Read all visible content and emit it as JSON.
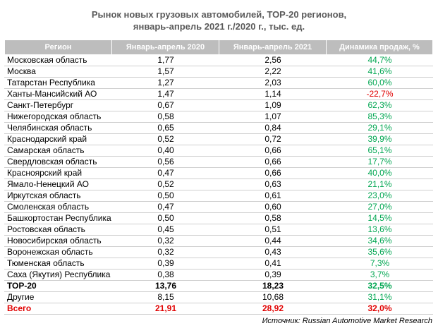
{
  "title_line1": "Рынок новых грузовых автомобилей, ТОР-20 регионов,",
  "title_line2": "январь-апрель 2021 г./2020 г., тыс. ед.",
  "headers": [
    "Регион",
    "Январь-апрель 2020",
    "Январь-апрель 2021",
    "Динамика продаж, %"
  ],
  "rows": [
    {
      "region": "Московская область",
      "y2020": "1,77",
      "y2021": "2,56",
      "change": "44,7%"
    },
    {
      "region": "Москва",
      "y2020": "1,57",
      "y2021": "2,22",
      "change": "41,6%"
    },
    {
      "region": "Татарстан Республика",
      "y2020": "1,27",
      "y2021": "2,03",
      "change": "60,0%"
    },
    {
      "region": "Ханты-Мансийский АО",
      "y2020": "1,47",
      "y2021": "1,14",
      "change": "-22,7%"
    },
    {
      "region": "Санкт-Петербург",
      "y2020": "0,67",
      "y2021": "1,09",
      "change": "62,3%"
    },
    {
      "region": "Нижегородская область",
      "y2020": "0,58",
      "y2021": "1,07",
      "change": "85,3%"
    },
    {
      "region": "Челябинская область",
      "y2020": "0,65",
      "y2021": "0,84",
      "change": "29,1%"
    },
    {
      "region": "Краснодарский край",
      "y2020": "0,52",
      "y2021": "0,72",
      "change": "39,9%"
    },
    {
      "region": "Самарская область",
      "y2020": "0,40",
      "y2021": "0,66",
      "change": "65,1%"
    },
    {
      "region": "Свердловская область",
      "y2020": "0,56",
      "y2021": "0,66",
      "change": "17,7%"
    },
    {
      "region": "Красноярский край",
      "y2020": "0,47",
      "y2021": "0,66",
      "change": "40,0%"
    },
    {
      "region": "Ямало-Ненецкий АО",
      "y2020": "0,52",
      "y2021": "0,63",
      "change": "21,1%"
    },
    {
      "region": "Иркутская область",
      "y2020": "0,50",
      "y2021": "0,61",
      "change": "23,0%"
    },
    {
      "region": "Смоленская область",
      "y2020": "0,47",
      "y2021": "0,60",
      "change": "27,0%"
    },
    {
      "region": "Башкортостан Республика",
      "y2020": "0,50",
      "y2021": "0,58",
      "change": "14,5%"
    },
    {
      "region": "Ростовская область",
      "y2020": "0,45",
      "y2021": "0,51",
      "change": "13,6%"
    },
    {
      "region": "Новосибирская область",
      "y2020": "0,32",
      "y2021": "0,44",
      "change": "34,6%"
    },
    {
      "region": "Воронежская область",
      "y2020": "0,32",
      "y2021": "0,43",
      "change": "35,6%"
    },
    {
      "region": "Тюменская область",
      "y2020": "0,39",
      "y2021": "0,41",
      "change": "7,3%"
    },
    {
      "region": "Саха (Якутия) Республика",
      "y2020": "0,38",
      "y2021": "0,39",
      "change": "3,7%"
    }
  ],
  "summary": [
    {
      "region": "ТОР-20",
      "y2020": "13,76",
      "y2021": "18,23",
      "change": "32,5%",
      "kind": "top"
    },
    {
      "region": "Другие",
      "y2020": "8,15",
      "y2021": "10,68",
      "change": "31,1%",
      "kind": "other"
    },
    {
      "region": "Всего",
      "y2020": "21,91",
      "y2021": "28,92",
      "change": "32,0%",
      "kind": "total"
    }
  ],
  "source": "Источник: Russian Automotive Market Research",
  "colors": {
    "header_bg": "#bdbdbd",
    "positive": "#00a651",
    "negative": "#e00000",
    "title": "#5a5a5a"
  }
}
